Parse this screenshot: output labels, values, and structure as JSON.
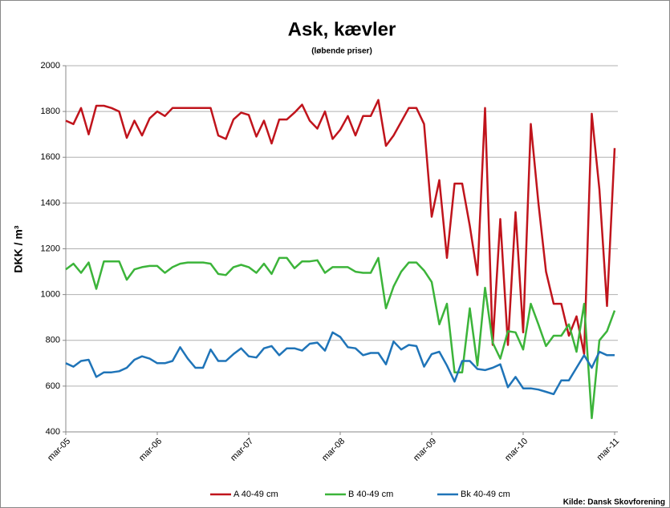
{
  "chart_data": {
    "type": "line",
    "title": "Ask, kævler",
    "subtitle": "(løbende priser)",
    "y_label": "DKK / m³",
    "source": "Kilde: Dansk Skovforening",
    "categories": [
      "mar-05",
      null,
      null,
      null,
      null,
      null,
      null,
      null,
      null,
      null,
      null,
      null,
      "mar-06",
      null,
      null,
      null,
      null,
      null,
      null,
      null,
      null,
      null,
      null,
      null,
      "mar-07",
      null,
      null,
      null,
      null,
      null,
      null,
      null,
      null,
      null,
      null,
      null,
      "mar-08",
      null,
      null,
      null,
      null,
      null,
      null,
      null,
      null,
      null,
      null,
      null,
      "mar-09",
      null,
      null,
      null,
      null,
      null,
      null,
      null,
      null,
      null,
      null,
      null,
      "mar-10",
      null,
      null,
      null,
      null,
      null,
      null,
      null,
      null,
      null,
      null,
      null,
      "mar-11"
    ],
    "series": [
      {
        "name": "A 40-49 cm",
        "color": "#c0141c",
        "values": [
          1760,
          1745,
          1815,
          1700,
          1825,
          1825,
          1815,
          1800,
          1685,
          1760,
          1695,
          1770,
          1800,
          1780,
          1815,
          1815,
          1815,
          1815,
          1815,
          1815,
          1695,
          1680,
          1765,
          1795,
          1785,
          1690,
          1760,
          1660,
          1765,
          1765,
          1795,
          1830,
          1760,
          1725,
          1800,
          1680,
          1720,
          1780,
          1695,
          1780,
          1780,
          1850,
          1650,
          1695,
          1755,
          1815,
          1815,
          1745,
          1340,
          1500,
          1160,
          1485,
          1485,
          1300,
          1085,
          1815,
          780,
          1330,
          780,
          1360,
          835,
          1745,
          1400,
          1100,
          960,
          960,
          820,
          905,
          740,
          1790,
          1460,
          950,
          1640
        ]
      },
      {
        "name": "B 40-49 cm",
        "color": "#3cb43a",
        "values": [
          1110,
          1135,
          1095,
          1140,
          1025,
          1145,
          1145,
          1145,
          1065,
          1110,
          1120,
          1125,
          1125,
          1095,
          1120,
          1135,
          1140,
          1140,
          1140,
          1135,
          1090,
          1085,
          1120,
          1130,
          1120,
          1095,
          1135,
          1090,
          1160,
          1160,
          1115,
          1145,
          1145,
          1150,
          1095,
          1120,
          1120,
          1120,
          1100,
          1095,
          1095,
          1160,
          940,
          1035,
          1100,
          1140,
          1140,
          1105,
          1055,
          870,
          960,
          660,
          660,
          940,
          690,
          1030,
          790,
          720,
          840,
          835,
          760,
          960,
          870,
          775,
          820,
          820,
          870,
          750,
          960,
          460,
          800,
          840,
          930
        ]
      },
      {
        "name": "Bk 40-49 cm",
        "color": "#1f74b8",
        "values": [
          700,
          685,
          710,
          715,
          640,
          660,
          660,
          665,
          680,
          715,
          730,
          720,
          700,
          700,
          710,
          770,
          720,
          680,
          680,
          760,
          710,
          710,
          740,
          765,
          730,
          725,
          765,
          775,
          735,
          765,
          765,
          755,
          785,
          790,
          755,
          835,
          815,
          770,
          765,
          735,
          745,
          745,
          695,
          795,
          760,
          780,
          775,
          685,
          740,
          750,
          690,
          620,
          710,
          710,
          675,
          670,
          680,
          695,
          595,
          640,
          590,
          590,
          585,
          575,
          565,
          625,
          625,
          680,
          735,
          680,
          750,
          735,
          735
        ]
      }
    ],
    "ylim": [
      400,
      2000
    ],
    "yticks": [
      400,
      600,
      800,
      1000,
      1200,
      1400,
      1600,
      1800,
      2000
    ],
    "grid": true,
    "legend": "bottom"
  }
}
